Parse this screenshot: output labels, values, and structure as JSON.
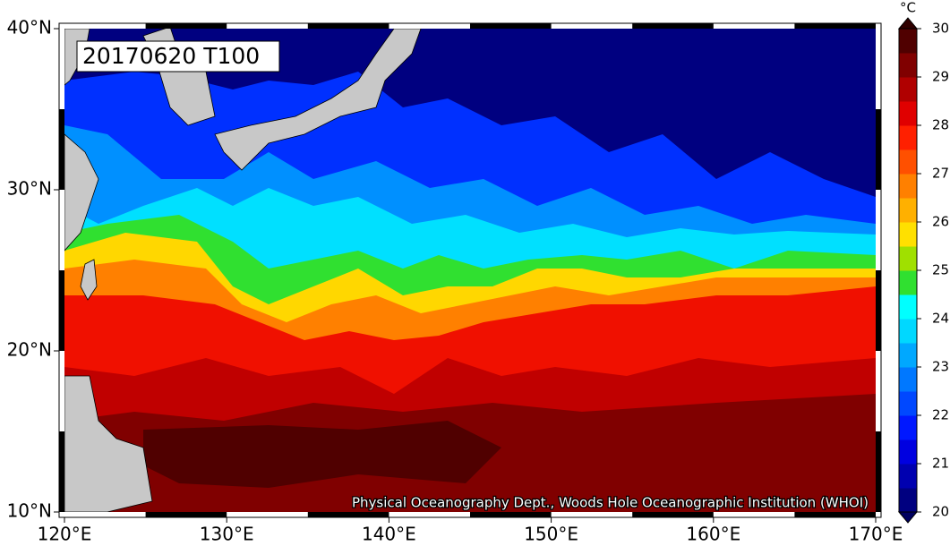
{
  "map": {
    "title": "20170620 T100",
    "credit": "Physical Oceanography Dept., Woods Hole Oceanographic Institution (WHOI)",
    "lonlim": [
      120,
      170
    ],
    "latlim": [
      10,
      40
    ],
    "lon_ticks": [
      {
        "value": 120,
        "label": "120°E"
      },
      {
        "value": 130,
        "label": "130°E"
      },
      {
        "value": 140,
        "label": "140°E"
      },
      {
        "value": 150,
        "label": "150°E"
      },
      {
        "value": 160,
        "label": "160°E"
      },
      {
        "value": 170,
        "label": "170°E"
      }
    ],
    "lat_ticks": [
      {
        "value": 10,
        "label": "10°N"
      },
      {
        "value": 20,
        "label": "20°N"
      },
      {
        "value": 30,
        "label": "30°N"
      },
      {
        "value": 40,
        "label": "40°N"
      }
    ],
    "colorbar": {
      "unit": "°C",
      "lim": [
        20,
        30
      ],
      "ticks": [
        20,
        21,
        22,
        23,
        24,
        25,
        26,
        27,
        28,
        29,
        30
      ],
      "colors": [
        "#000080",
        "#0000b0",
        "#0000e0",
        "#0018ff",
        "#0048ff",
        "#0078ff",
        "#00a8ff",
        "#00d8ff",
        "#00ffff",
        "#30e030",
        "#a0e000",
        "#ffe000",
        "#ffb000",
        "#ff8000",
        "#ff5000",
        "#ff2000",
        "#e00000",
        "#b00000",
        "#800000",
        "#500000"
      ],
      "under_color": "#000060",
      "over_color": "#300000"
    }
  }
}
